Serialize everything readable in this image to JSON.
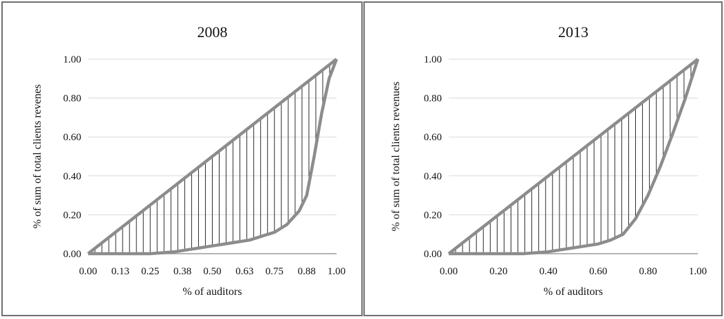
{
  "chart_data": [
    {
      "type": "line",
      "title": "2008",
      "xlabel": "% of auditors",
      "ylabel": "% of sum of total clients revenes",
      "xlim": [
        0,
        1
      ],
      "ylim": [
        0,
        1
      ],
      "x_ticks": [
        "0.00",
        "0.13",
        "0.25",
        "0.38",
        "0.50",
        "0.63",
        "0.75",
        "0.88",
        "1.00"
      ],
      "y_ticks": [
        "0.00",
        "0.20",
        "0.40",
        "0.60",
        "0.80",
        "1.00"
      ],
      "grid": true,
      "legend": "none",
      "hatched_area_between_series": true,
      "series": [
        {
          "x": [
            0,
            1
          ],
          "y": [
            0,
            1
          ]
        },
        {
          "x": [
            0,
            0.05,
            0.1,
            0.15,
            0.2,
            0.25,
            0.3,
            0.35,
            0.4,
            0.45,
            0.5,
            0.55,
            0.6,
            0.65,
            0.7,
            0.75,
            0.8,
            0.85,
            0.88,
            0.91,
            0.94,
            0.97,
            1.0
          ],
          "y": [
            0,
            0,
            0,
            0,
            0,
            0,
            0.005,
            0.01,
            0.02,
            0.03,
            0.04,
            0.05,
            0.06,
            0.07,
            0.09,
            0.11,
            0.15,
            0.22,
            0.3,
            0.5,
            0.72,
            0.9,
            1.0
          ]
        }
      ],
      "colors": {
        "line": "#8c8c8c",
        "hatch": "#2a2a2a",
        "grid": "#d9d9d9",
        "axis": "#9a9a9a"
      }
    },
    {
      "type": "line",
      "title": "2013",
      "xlabel": "% of auditors",
      "ylabel": "% of sum of total clients revenues",
      "xlim": [
        0,
        1
      ],
      "ylim": [
        0,
        1
      ],
      "x_ticks": [
        "0.00",
        "0.20",
        "0.40",
        "0.60",
        "0.80",
        "1.00"
      ],
      "y_ticks": [
        "0.00",
        "0.20",
        "0.40",
        "0.60",
        "0.80",
        "1.00"
      ],
      "grid": true,
      "legend": "none",
      "hatched_area_between_series": true,
      "series": [
        {
          "x": [
            0,
            1
          ],
          "y": [
            0,
            1
          ]
        },
        {
          "x": [
            0,
            0.05,
            0.1,
            0.15,
            0.2,
            0.25,
            0.3,
            0.35,
            0.4,
            0.45,
            0.5,
            0.55,
            0.6,
            0.65,
            0.7,
            0.75,
            0.8,
            0.85,
            0.9,
            0.95,
            1.0
          ],
          "y": [
            0,
            0,
            0,
            0,
            0,
            0,
            0,
            0.005,
            0.01,
            0.02,
            0.03,
            0.04,
            0.05,
            0.07,
            0.1,
            0.18,
            0.3,
            0.45,
            0.62,
            0.8,
            1.0
          ]
        }
      ],
      "colors": {
        "line": "#8c8c8c",
        "hatch": "#2a2a2a",
        "grid": "#d9d9d9",
        "axis": "#9a9a9a"
      }
    }
  ]
}
